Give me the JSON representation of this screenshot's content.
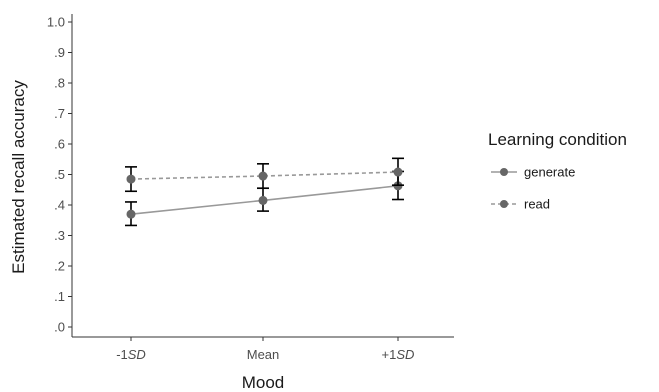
{
  "chart_data": {
    "type": "line",
    "title": "",
    "xlabel": "Mood",
    "ylabel": "Estimated recall accuracy",
    "categories": [
      {
        "pre": "-1",
        "ital": "SD"
      },
      {
        "pre": "Mean",
        "ital": ""
      },
      {
        "pre": "+1",
        "ital": "SD"
      }
    ],
    "ylim": [
      0,
      1.0
    ],
    "yticks": [
      0.0,
      0.1,
      0.2,
      0.3,
      0.4,
      0.5,
      0.6,
      0.7,
      0.8,
      0.9,
      1.0
    ],
    "ytick_labels": [
      ".0",
      ".1",
      ".2",
      ".3",
      ".4",
      ".5",
      ".6",
      ".7",
      ".8",
      ".9",
      "1.0"
    ],
    "grid": false,
    "legend": {
      "title": "Learning condition",
      "placement": "right"
    },
    "series": [
      {
        "name": "generate",
        "values": [
          0.37,
          0.415,
          0.463
        ],
        "ci_lower": [
          0.333,
          0.38,
          0.418
        ],
        "ci_upper": [
          0.41,
          0.455,
          0.51
        ],
        "line_style": "solid",
        "color": "#999999"
      },
      {
        "name": "read",
        "values": [
          0.485,
          0.495,
          0.508
        ],
        "ci_lower": [
          0.445,
          0.455,
          0.465
        ],
        "ci_upper": [
          0.525,
          0.535,
          0.553
        ],
        "line_style": "dashed",
        "color": "#999999"
      }
    ],
    "point_color": "#666666",
    "errorbar_color": "#000000"
  }
}
